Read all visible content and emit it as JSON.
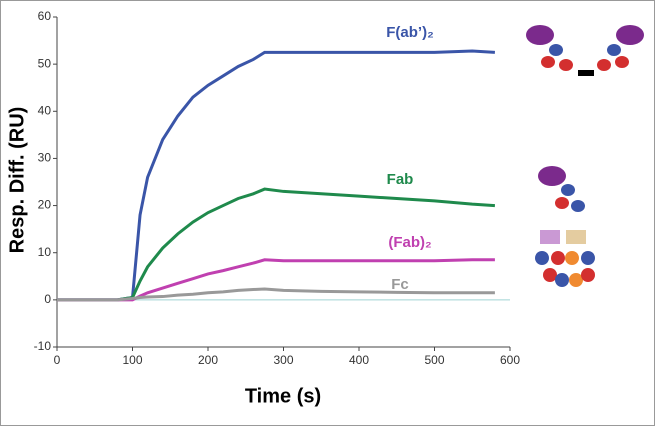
{
  "chart_data": {
    "type": "line",
    "x_label": "Time (s)",
    "y_label": "Resp. Diff. (RU)",
    "x": [
      0,
      20,
      40,
      60,
      80,
      100,
      110,
      120,
      140,
      160,
      180,
      200,
      220,
      240,
      260,
      275,
      300,
      350,
      400,
      450,
      500,
      550,
      580
    ],
    "series": [
      {
        "name": "F(ab’)₂",
        "color": "#3a55a8",
        "values": [
          0,
          0,
          0,
          0,
          0,
          0.5,
          18,
          26,
          34,
          39,
          43,
          45.5,
          47.5,
          49.5,
          51,
          52.5,
          52.5,
          52.5,
          52.5,
          52.5,
          52.5,
          52.8,
          52.5
        ]
      },
      {
        "name": "Fab",
        "color": "#1f8a4c",
        "values": [
          0,
          0,
          0,
          0,
          0,
          0.5,
          4,
          7,
          11,
          14,
          16.5,
          18.5,
          20,
          21.5,
          22.5,
          23.5,
          23,
          22.5,
          22,
          21.5,
          21,
          20.3,
          20
        ]
      },
      {
        "name": "(Fab)₂",
        "color": "#c040b0",
        "values": [
          0,
          0,
          0,
          0,
          0,
          0,
          0.8,
          1.5,
          2.5,
          3.5,
          4.5,
          5.5,
          6.2,
          7,
          7.8,
          8.5,
          8.3,
          8.3,
          8.3,
          8.3,
          8.3,
          8.5,
          8.5
        ]
      },
      {
        "name": "Fc",
        "color": "#999999",
        "values": [
          0,
          0,
          0,
          0,
          0,
          0.3,
          0.5,
          0.6,
          0.7,
          1,
          1.2,
          1.5,
          1.7,
          2,
          2.2,
          2.3,
          2,
          1.8,
          1.7,
          1.6,
          1.5,
          1.5,
          1.5
        ]
      }
    ],
    "xlim": [
      0,
      600
    ],
    "xticks": [
      0,
      100,
      200,
      300,
      400,
      500,
      600
    ],
    "ylim": [
      -10,
      60
    ],
    "yticks": [
      -10,
      0,
      10,
      20,
      30,
      40,
      50,
      60
    ]
  }
}
